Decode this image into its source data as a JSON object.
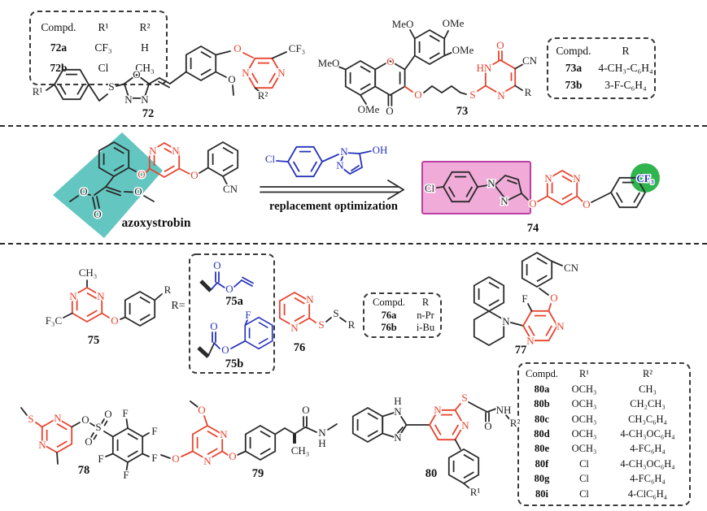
{
  "figure": {
    "colors": {
      "red": "#e8432e",
      "blue": "#2633bb",
      "teal": "#63c6c0",
      "pink_fill": "#f0abd8",
      "pink_border": "#bb3fa5",
      "green": "#2fb44e",
      "ink": "#2a2a2a"
    },
    "atoms": {
      "O": "O",
      "N": "N",
      "S": "S",
      "F": "F",
      "Cl": "Cl",
      "H": "H",
      "HN": "HN",
      "NH": "NH",
      "CN": "CN",
      "OH": "OH",
      "OMe": "OMe",
      "MeO": "MeO",
      "CH3": "CH₃",
      "CF3": "CF₃",
      "F3C": "F₃C",
      "R": "R",
      "R1": "R¹",
      "R2": "R²"
    },
    "labels": {
      "c72": "72",
      "c73": "73",
      "azoxystrobin": "azoxystrobin",
      "c74": "74",
      "c75": "75",
      "c75a": "75a",
      "c75b": "75b",
      "c76": "76",
      "c77": "77",
      "c78": "78",
      "c79": "79",
      "c80": "80"
    },
    "annotations": {
      "arrow_text": "replacement  optimization",
      "r_equals": "R="
    },
    "tables": {
      "t72": {
        "headers": [
          "Compd.",
          "R¹",
          "R²"
        ],
        "rows": [
          [
            "72a",
            "CF₃",
            "H"
          ],
          [
            "72b",
            "Cl",
            "CH₃"
          ]
        ]
      },
      "t73": {
        "headers": [
          "Compd.",
          "R"
        ],
        "rows": [
          [
            "73a",
            "4-CH₃-C₆H₄"
          ],
          [
            "73b",
            "3-F-C₆H₄"
          ]
        ]
      },
      "t76": {
        "headers": [
          "Compd.",
          "R"
        ],
        "rows": [
          [
            "76a",
            "n-Pr"
          ],
          [
            "76b",
            "i-Bu"
          ]
        ]
      },
      "t80": {
        "headers": [
          "Compd.",
          "R¹",
          "R²"
        ],
        "rows": [
          [
            "80a",
            "OCH₃",
            "CH₃"
          ],
          [
            "80b",
            "OCH₃",
            "CH₂CH₃"
          ],
          [
            "80c",
            "OCH₃",
            "CH₃C₆H₄"
          ],
          [
            "80d",
            "OCH₃",
            "4-CH₃OC₆H₄"
          ],
          [
            "80e",
            "OCH₃",
            "4-FC₆H₄"
          ],
          [
            "80f",
            "Cl",
            "4-CH₃OC₆H₄"
          ],
          [
            "80g",
            "Cl",
            "4-FC₆H₄"
          ],
          [
            "80i",
            "Cl",
            "4-ClC₆H₄"
          ]
        ]
      }
    }
  }
}
